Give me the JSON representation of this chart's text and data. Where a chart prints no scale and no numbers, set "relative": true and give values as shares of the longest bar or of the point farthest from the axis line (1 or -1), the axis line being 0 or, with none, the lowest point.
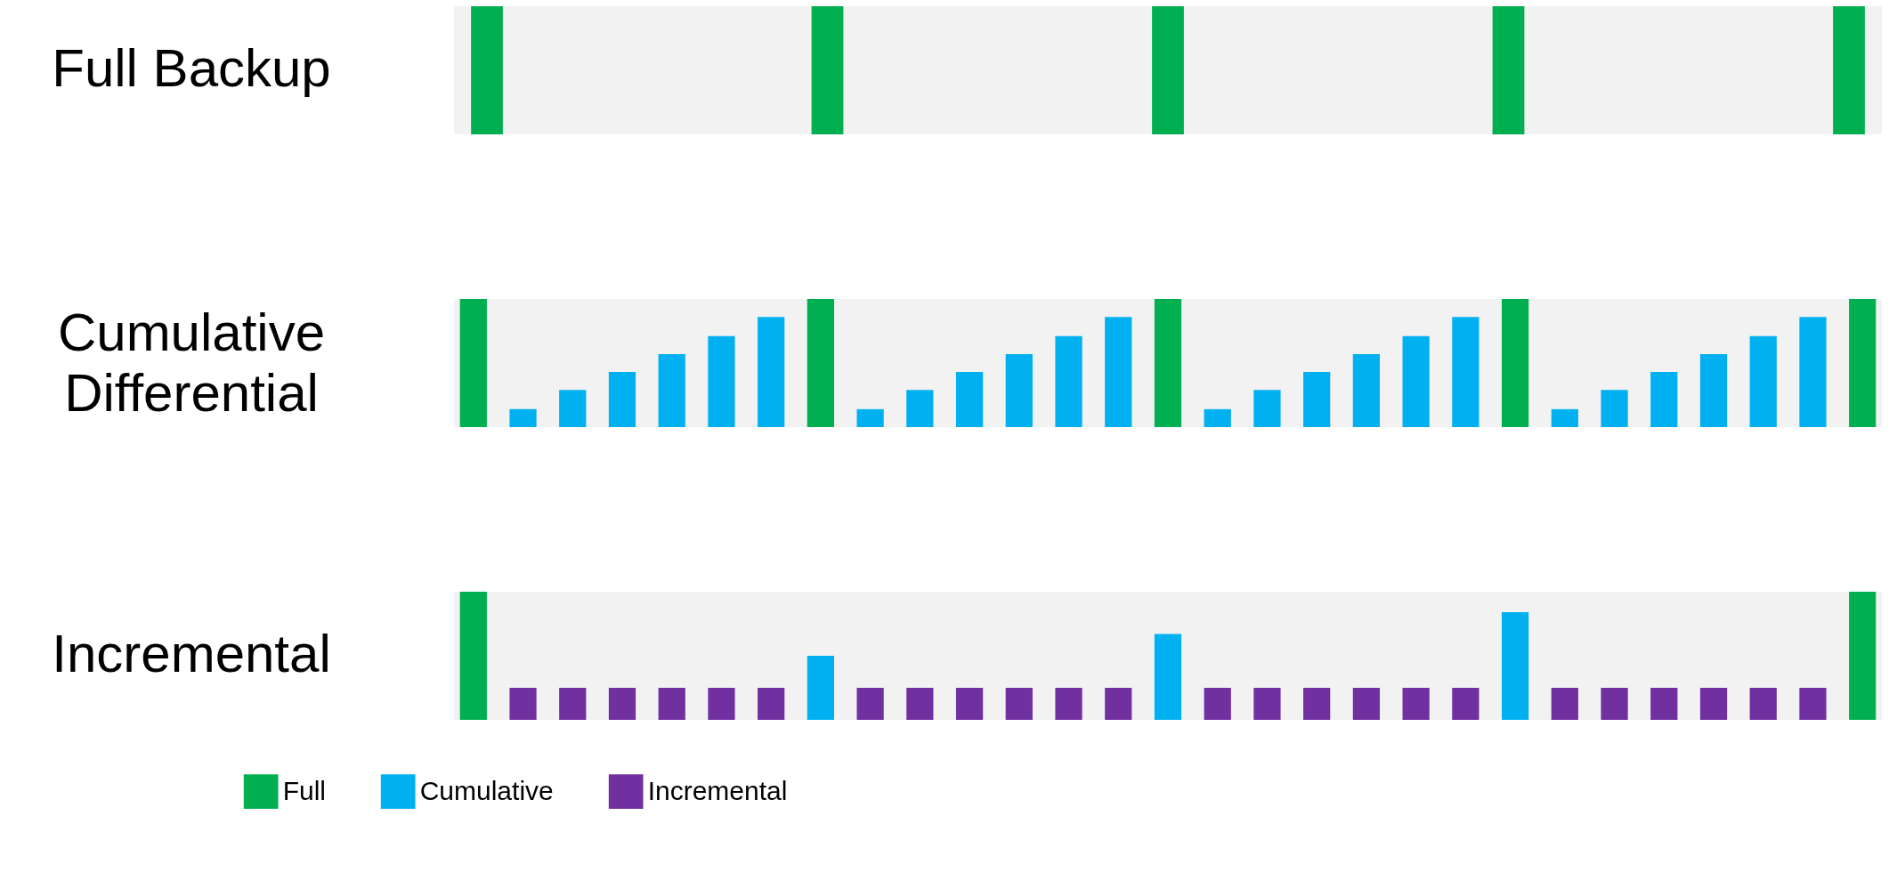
{
  "chart_data": [
    {
      "type": "bar",
      "title": "Full Backup",
      "relative": true,
      "categories": [
        null,
        null,
        null,
        null,
        null
      ],
      "series": [
        {
          "color": "#00b050",
          "values": [
            1,
            1,
            1,
            1,
            1
          ]
        }
      ]
    },
    {
      "type": "bar",
      "title": "Cumulative",
      "subtitle": "Differential",
      "relative": true,
      "stacked": true,
      "categories": [
        null,
        null,
        null,
        null,
        null,
        null,
        null,
        null,
        null,
        null,
        null,
        null,
        null,
        null,
        null,
        null,
        null,
        null,
        null,
        null,
        null,
        null,
        null,
        null,
        null,
        null,
        null,
        null,
        null
      ],
      "series": [
        {
          "color": "#00b050",
          "values": [
            1,
            null,
            null,
            null,
            null,
            null,
            null,
            1,
            null,
            null,
            null,
            null,
            null,
            null,
            1,
            null,
            null,
            null,
            null,
            null,
            null,
            1,
            null,
            null,
            null,
            null,
            null,
            null,
            1
          ]
        },
        {
          "color": "#00b0f0",
          "values": [
            null,
            0.14,
            0.29,
            0.43,
            0.57,
            0.71,
            0.86,
            null,
            0.14,
            0.29,
            0.43,
            0.57,
            0.71,
            0.86,
            null,
            0.14,
            0.29,
            0.43,
            0.57,
            0.71,
            0.86,
            null,
            0.14,
            0.29,
            0.43,
            0.57,
            0.71,
            0.86,
            null
          ]
        }
      ]
    },
    {
      "type": "bar",
      "title": "Incremental",
      "relative": true,
      "stacked": true,
      "legend": "bottom",
      "categories": [
        null,
        null,
        null,
        null,
        null,
        null,
        null,
        null,
        null,
        null,
        null,
        null,
        null,
        null,
        null,
        null,
        null,
        null,
        null,
        null,
        null,
        null,
        null,
        null,
        null,
        null,
        null,
        null,
        null
      ],
      "series": [
        {
          "name": "Full",
          "color": "#00b050",
          "values": [
            1,
            null,
            null,
            null,
            null,
            null,
            null,
            null,
            null,
            null,
            null,
            null,
            null,
            null,
            null,
            null,
            null,
            null,
            null,
            null,
            null,
            null,
            null,
            null,
            null,
            null,
            null,
            null,
            1
          ]
        },
        {
          "name": "Cumulative",
          "color": "#00b0f0",
          "values": [
            null,
            null,
            null,
            null,
            null,
            null,
            null,
            0.5,
            null,
            null,
            null,
            null,
            null,
            null,
            0.67,
            null,
            null,
            null,
            null,
            null,
            null,
            0.84,
            null,
            null,
            null,
            null,
            null,
            null,
            null
          ]
        },
        {
          "name": "Incremental",
          "color": "#7030a0",
          "values": [
            null,
            0.25,
            0.25,
            0.25,
            0.25,
            0.25,
            0.25,
            null,
            0.25,
            0.25,
            0.25,
            0.25,
            0.25,
            0.25,
            null,
            0.25,
            0.25,
            0.25,
            0.25,
            0.25,
            0.25,
            null,
            0.25,
            0.25,
            0.25,
            0.25,
            0.25,
            0.25,
            null
          ]
        }
      ]
    }
  ]
}
